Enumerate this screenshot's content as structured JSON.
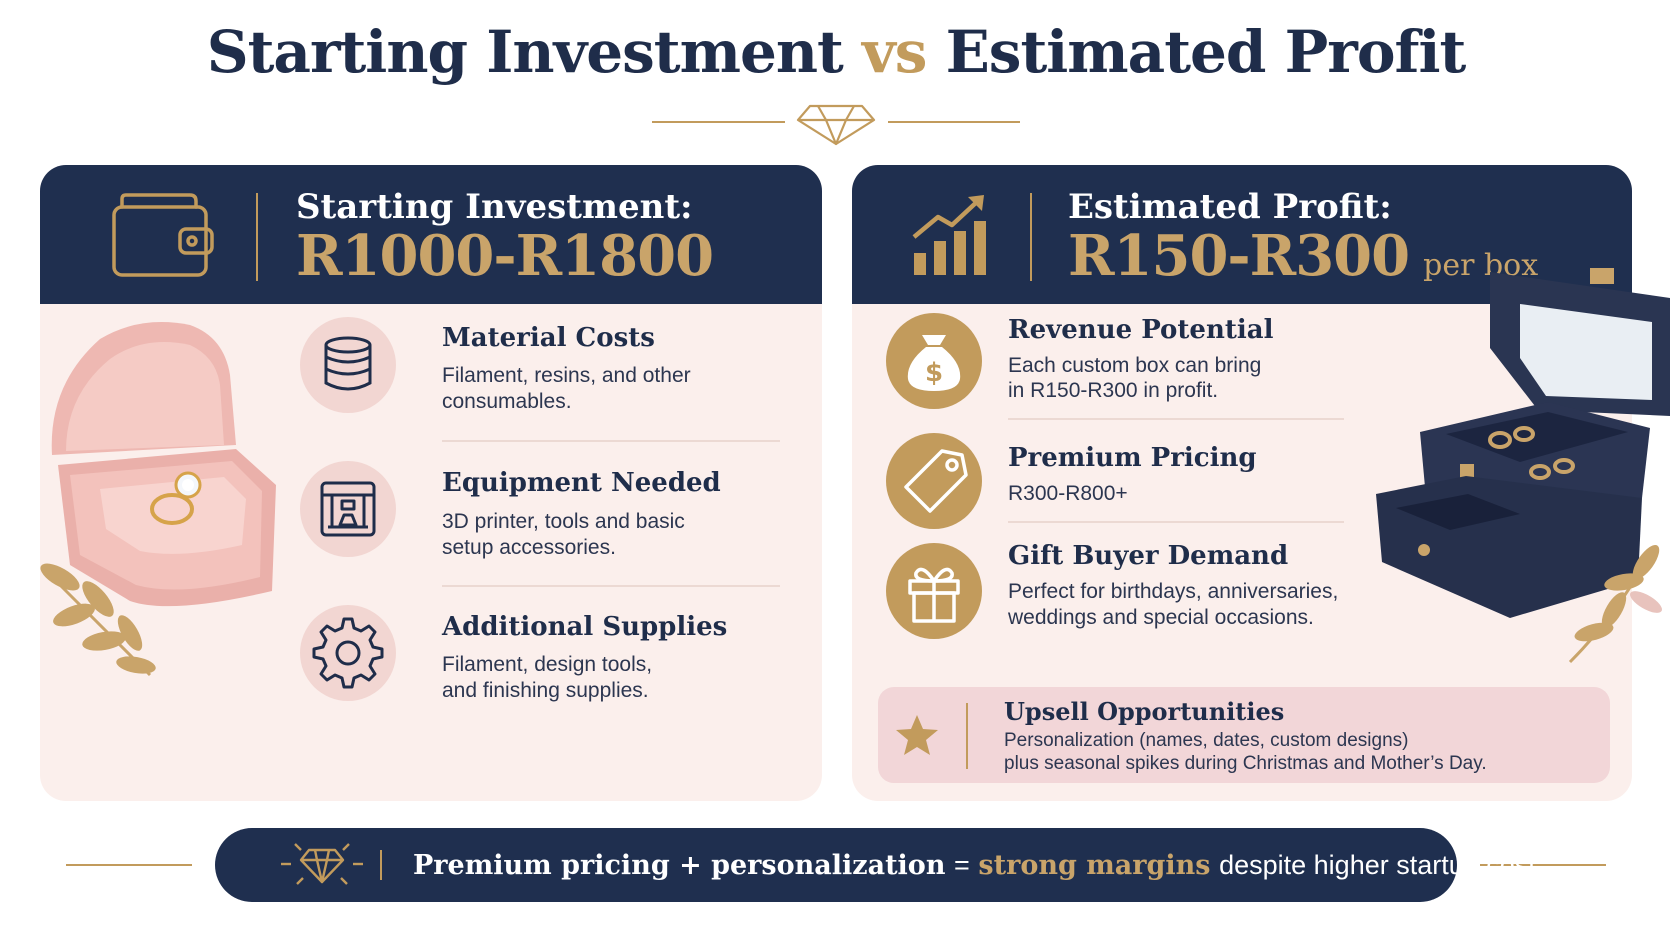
{
  "title": {
    "part1": "Starting Investment",
    "vs": "vs",
    "part2": "Estimated Profit"
  },
  "investment": {
    "label": "Starting Investment:",
    "value": "R1000-R1800",
    "items": [
      {
        "title": "Material Costs",
        "line1": "Filament, resins, and other",
        "line2": "consumables.",
        "icon": "coins-stack-icon"
      },
      {
        "title": "Equipment Needed",
        "line1": "3D printer, tools and basic",
        "line2": "setup accessories.",
        "icon": "3d-printer-icon"
      },
      {
        "title": "Additional Supplies",
        "line1": "Filament, design tools,",
        "line2": "and finishing supplies.",
        "icon": "gear-icon"
      }
    ]
  },
  "profit": {
    "label": "Estimated Profit:",
    "value": "R150-R300",
    "suffix": "per box",
    "items": [
      {
        "title": "Revenue Potential",
        "line1": "Each custom box can bring",
        "line2": "in R150-R300 in profit.",
        "icon": "money-bag-icon"
      },
      {
        "title": "Premium Pricing",
        "line1": "R300-R800+",
        "line2": "",
        "icon": "price-tag-icon"
      },
      {
        "title": "Gift Buyer Demand",
        "line1": "Perfect for birthdays, anniversaries,",
        "line2": "weddings and special occasions.",
        "icon": "gift-icon"
      }
    ],
    "upsell": {
      "title": "Upsell Opportunities",
      "line1": "Personalization (names, dates, custom designs)",
      "line2": "plus seasonal spikes during Christmas and Mother’s Day.",
      "icon": "star-icon"
    }
  },
  "banner": {
    "part1": "Premium pricing + personalization",
    "equals": "=",
    "highlight": "strong margins",
    "rest": "despite higher startup cost.",
    "icon": "diamond-icon"
  },
  "colors": {
    "navy": "#1f2f4f",
    "gold": "#c29b5c",
    "blush": "#fbefec",
    "pink": "#f2d6d2"
  }
}
